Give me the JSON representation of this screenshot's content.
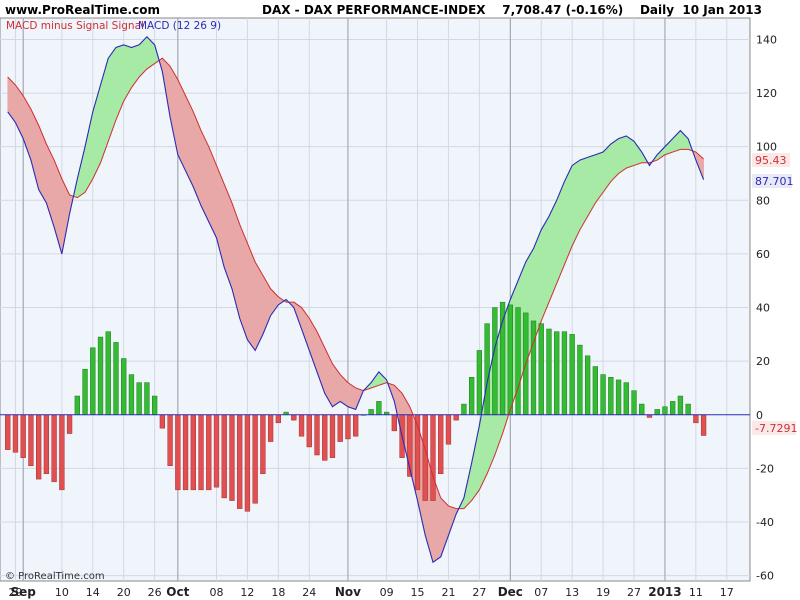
{
  "header": {
    "site": "www.ProRealTime.com",
    "title": "DAX - DAX PERFORMANCE-INDEX    7,708.47 (-0.16%)    Daily  10 Jan 2013"
  },
  "legend": {
    "item1": "MACD minus Signal Signal",
    "item2": "MACD (12 26 9)"
  },
  "copyright": "© ProRealTime.com",
  "colors": {
    "macd": "#2b2bb8",
    "signal": "#d03030",
    "hist_pos": "#33bb33",
    "hist_neg": "#e05050",
    "fill_pos": "#a6eaa6",
    "fill_neg": "#e8a8a8",
    "plot_bg": "#f0f4fb",
    "grid": "#d4d8e4",
    "vline": "#9aa0aa",
    "label_signal_bg": "#fbe8e8",
    "label_macd_bg": "#e8eaf8"
  },
  "chart_data": {
    "type": "line",
    "ylim": [
      -62,
      148
    ],
    "y_ticks": [
      140,
      120,
      100,
      80,
      60,
      40,
      20,
      0,
      -20,
      -40,
      -60
    ],
    "x_ticks": [
      {
        "i": 1,
        "label": "29"
      },
      {
        "i": 2,
        "label": "Sep"
      },
      {
        "i": 7,
        "label": "10"
      },
      {
        "i": 11,
        "label": "14"
      },
      {
        "i": 15,
        "label": "20"
      },
      {
        "i": 19,
        "label": "26"
      },
      {
        "i": 22,
        "label": "Oct"
      },
      {
        "i": 27,
        "label": "08"
      },
      {
        "i": 31,
        "label": "12"
      },
      {
        "i": 35,
        "label": "18"
      },
      {
        "i": 39,
        "label": "24"
      },
      {
        "i": 44,
        "label": "Nov"
      },
      {
        "i": 49,
        "label": "09"
      },
      {
        "i": 53,
        "label": "15"
      },
      {
        "i": 57,
        "label": "21"
      },
      {
        "i": 61,
        "label": "27"
      },
      {
        "i": 65,
        "label": "Dec"
      },
      {
        "i": 69,
        "label": "07"
      },
      {
        "i": 73,
        "label": "13"
      },
      {
        "i": 77,
        "label": "19"
      },
      {
        "i": 81,
        "label": "27"
      },
      {
        "i": 85,
        "label": "2013"
      },
      {
        "i": 89,
        "label": "11"
      },
      {
        "i": 93,
        "label": "17"
      }
    ],
    "bold_x_labels": [
      "Sep",
      "Oct",
      "Nov",
      "Dec",
      "2013"
    ],
    "vertical_lines_at": [
      2,
      22,
      44,
      65,
      85
    ],
    "x_range": [
      -1,
      96
    ],
    "series": [
      {
        "name": "MACD (12 26 9)",
        "values": [
          113,
          109,
          103,
          95,
          84,
          79,
          70,
          60,
          75,
          88,
          100,
          113,
          123,
          133,
          137,
          138,
          137,
          138,
          141,
          138,
          128,
          111,
          97,
          91,
          85,
          78,
          72,
          66,
          55,
          47,
          36,
          28,
          24,
          30,
          37,
          41,
          43,
          40,
          32,
          24,
          16,
          8,
          3,
          5,
          3,
          2,
          9,
          12,
          16,
          13,
          5,
          -8,
          -20,
          -32,
          -45,
          -55,
          -53,
          -45,
          -37,
          -31,
          -18,
          -4,
          12,
          25,
          35,
          43,
          50,
          57,
          62,
          69,
          74,
          80,
          87,
          93,
          95,
          96,
          97,
          98,
          101,
          103,
          104,
          102,
          98,
          93,
          97,
          100,
          103,
          106,
          103,
          95,
          87.701
        ]
      },
      {
        "name": "Signal",
        "values": [
          126,
          123,
          119,
          114,
          108,
          101,
          95,
          88,
          82,
          81,
          83,
          88,
          94,
          102,
          110,
          117,
          122,
          126,
          129,
          131,
          133,
          130,
          125,
          119,
          113,
          106,
          100,
          93,
          86,
          79,
          71,
          64,
          57,
          52,
          47,
          44,
          42,
          42,
          40,
          36,
          31,
          25,
          19,
          15,
          12,
          10,
          9,
          10,
          11,
          12,
          11,
          8,
          3,
          -4,
          -13,
          -23,
          -31,
          -34,
          -35,
          -35,
          -32,
          -28,
          -22,
          -15,
          -7,
          2,
          10,
          19,
          27,
          35,
          42,
          49,
          56,
          63,
          69,
          74,
          79,
          83,
          87,
          90,
          92,
          93,
          94,
          94,
          95,
          97,
          98,
          99,
          99,
          98,
          95.43
        ]
      },
      {
        "name": "MACD minus Signal Signal",
        "values": [
          -13,
          -14,
          -16,
          -19,
          -24,
          -22,
          -25,
          -28,
          -7,
          7,
          17,
          25,
          29,
          31,
          27,
          21,
          15,
          12,
          12,
          7,
          -5,
          -19,
          -28,
          -28,
          -28,
          -28,
          -28,
          -27,
          -31,
          -32,
          -35,
          -36,
          -33,
          -22,
          -10,
          -3,
          1,
          -2,
          -8,
          -12,
          -15,
          -17,
          -16,
          -10,
          -9,
          -8,
          0,
          2,
          5,
          1,
          -6,
          -16,
          -23,
          -28,
          -32,
          -32,
          -22,
          -11,
          -2,
          4,
          14,
          24,
          34,
          40,
          42,
          41,
          40,
          38,
          35,
          34,
          32,
          31,
          31,
          30,
          26,
          22,
          18,
          15,
          14,
          13,
          12,
          9,
          4,
          -1,
          2,
          3,
          5,
          7,
          4,
          -3,
          -7.7291
        ]
      }
    ],
    "last_values": {
      "signal": "95.43",
      "macd": "87.701",
      "histogram": "-7.7291"
    }
  }
}
